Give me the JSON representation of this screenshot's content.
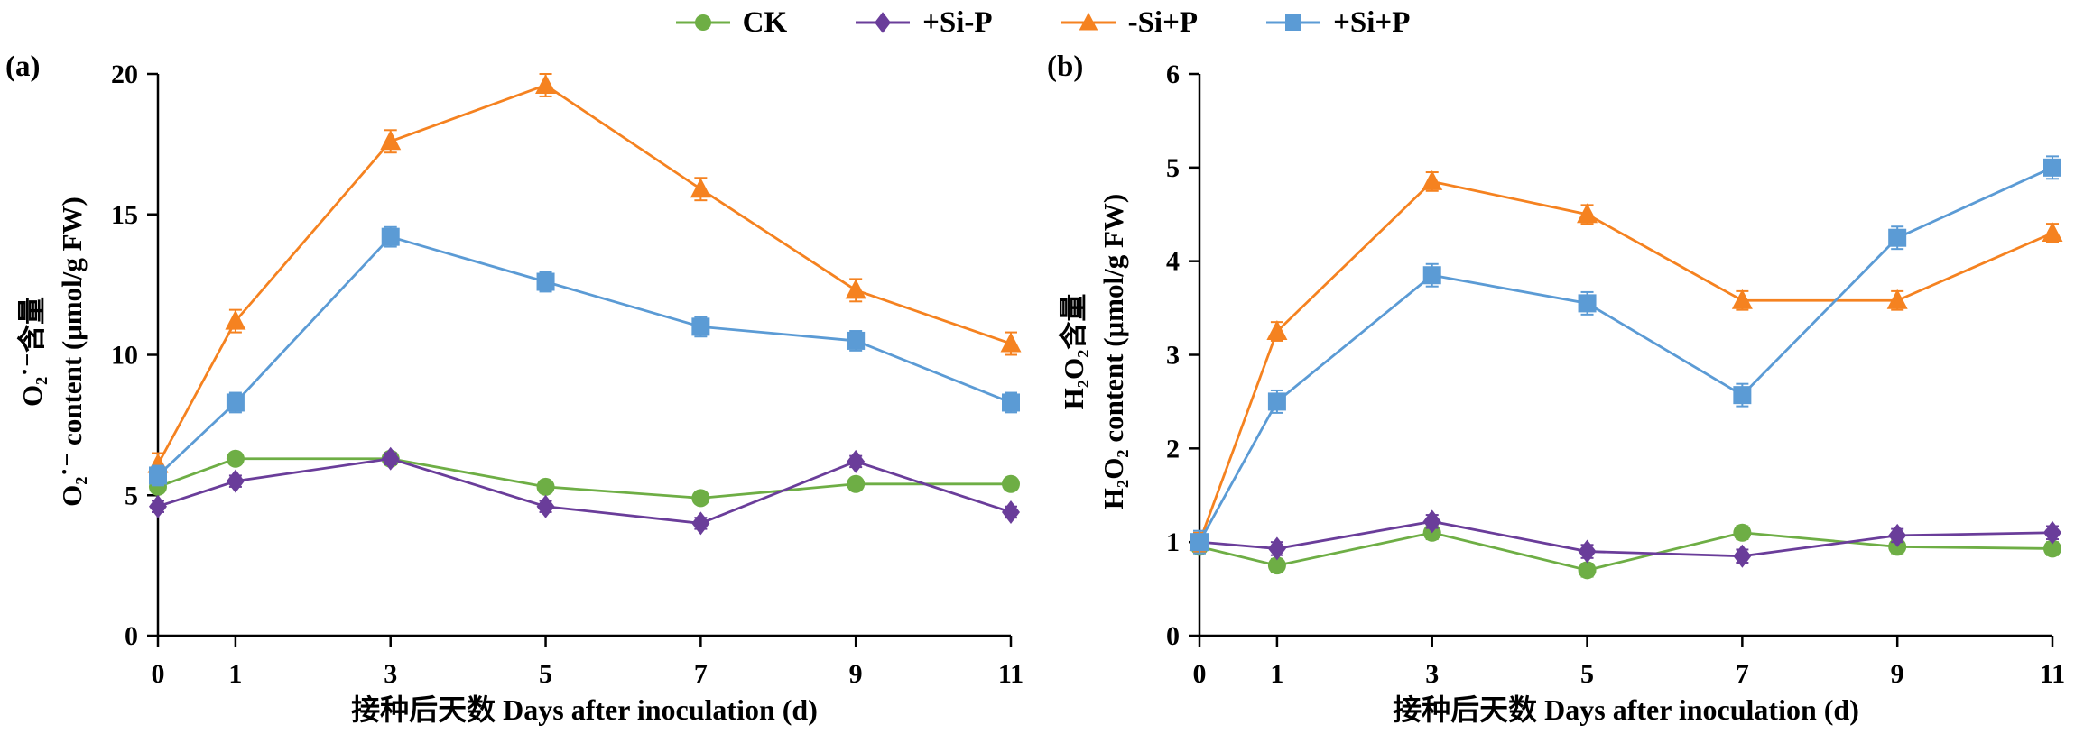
{
  "figure": {
    "panel_a_label": "(a)",
    "panel_b_label": "(b)"
  },
  "legend": {
    "items": [
      {
        "label": "CK",
        "color": "#6eae45",
        "marker": "circle"
      },
      {
        "label": "+Si-P",
        "color": "#6a3d9a",
        "marker": "diamond"
      },
      {
        "label": "-Si+P",
        "color": "#f58220",
        "marker": "triangle"
      },
      {
        "label": "+Si+P",
        "color": "#5b9bd5",
        "marker": "square"
      }
    ]
  },
  "chart_data": [
    {
      "type": "line",
      "panel": "a",
      "x": [
        0,
        1,
        3,
        5,
        7,
        9,
        11
      ],
      "xticks": [
        0,
        1,
        3,
        5,
        7,
        9,
        11
      ],
      "xlim": [
        0,
        11
      ],
      "ylim": [
        0,
        20
      ],
      "yticks": [
        0,
        5,
        10,
        15,
        20
      ],
      "ylabel_cn": "O₂˙⁻含量",
      "ylabel_en": "O₂˙⁻ content (μmol/g FW)",
      "xlabel": "接种后天数 Days after inoculation (d)",
      "grid": false,
      "legend_position": "top-center",
      "series": [
        {
          "name": "CK",
          "marker": "circle",
          "color": "#6eae45",
          "err": 0.2,
          "values": [
            5.3,
            6.3,
            6.3,
            5.3,
            4.9,
            5.4,
            5.4
          ]
        },
        {
          "name": "+Si-P",
          "marker": "diamond",
          "color": "#6a3d9a",
          "err": 0.2,
          "values": [
            4.6,
            5.5,
            6.3,
            4.6,
            4.0,
            6.2,
            4.4
          ]
        },
        {
          "name": "-Si+P",
          "marker": "triangle",
          "color": "#f58220",
          "err": 0.4,
          "values": [
            6.1,
            11.2,
            17.6,
            19.6,
            15.9,
            12.3,
            10.4
          ]
        },
        {
          "name": "+Si+P",
          "marker": "square",
          "color": "#5b9bd5",
          "err": 0.35,
          "values": [
            5.7,
            8.3,
            14.2,
            12.6,
            11.0,
            10.5,
            8.3
          ]
        }
      ]
    },
    {
      "type": "line",
      "panel": "b",
      "x": [
        0,
        1,
        3,
        5,
        7,
        9,
        11
      ],
      "xticks": [
        0,
        1,
        3,
        5,
        7,
        9,
        11
      ],
      "xlim": [
        0,
        11
      ],
      "ylim": [
        0,
        6
      ],
      "yticks": [
        0,
        1,
        2,
        3,
        4,
        5,
        6
      ],
      "ylabel_cn": "H₂O₂含量",
      "ylabel_en": "H₂O₂ content (μmol/g FW)",
      "xlabel": "接种后天数 Days after inoculation (d)",
      "grid": false,
      "legend_position": "top-center",
      "series": [
        {
          "name": "CK",
          "marker": "circle",
          "color": "#6eae45",
          "err": 0.07,
          "values": [
            0.95,
            0.75,
            1.1,
            0.7,
            1.1,
            0.95,
            0.93
          ]
        },
        {
          "name": "+Si-P",
          "marker": "diamond",
          "color": "#6a3d9a",
          "err": 0.07,
          "values": [
            1.0,
            0.93,
            1.22,
            0.9,
            0.85,
            1.07,
            1.1
          ]
        },
        {
          "name": "-Si+P",
          "marker": "triangle",
          "color": "#f58220",
          "err": 0.1,
          "values": [
            1.0,
            3.25,
            4.85,
            4.5,
            3.58,
            3.58,
            4.3
          ]
        },
        {
          "name": "+Si+P",
          "marker": "square",
          "color": "#5b9bd5",
          "err": 0.12,
          "values": [
            1.0,
            2.5,
            3.85,
            3.55,
            2.57,
            4.25,
            5.0
          ]
        }
      ]
    }
  ]
}
